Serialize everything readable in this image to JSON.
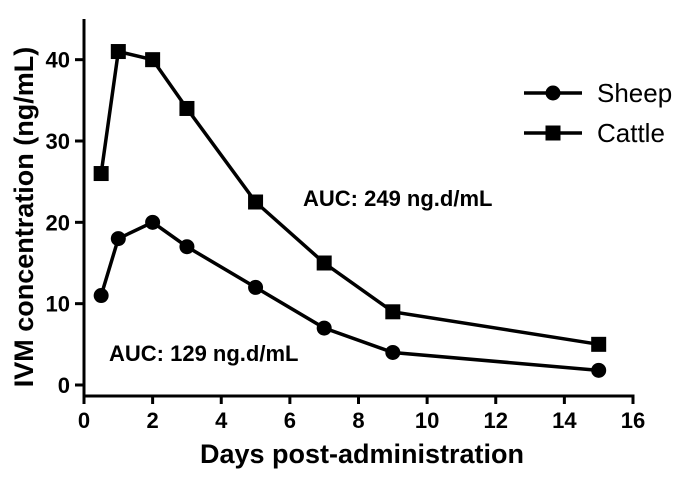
{
  "chart_data": {
    "type": "line",
    "xlabel": "Days post-administration",
    "ylabel": "IVM concentration  (ng/mL)",
    "xlim": [
      0,
      16
    ],
    "ylim": [
      0,
      45
    ],
    "x_ticks": [
      0,
      2,
      4,
      6,
      8,
      10,
      12,
      14,
      16
    ],
    "y_ticks": [
      0,
      10,
      20,
      30,
      40
    ],
    "grid": false,
    "legend_position": "top-right",
    "series": [
      {
        "name": "Sheep",
        "marker": "circle",
        "x": [
          0.5,
          1,
          2,
          3,
          5,
          7,
          9,
          15
        ],
        "y": [
          11,
          18,
          20,
          17,
          12,
          7,
          4,
          1.8
        ]
      },
      {
        "name": "Cattle",
        "marker": "square",
        "x": [
          0.5,
          1,
          2,
          3,
          5,
          7,
          9,
          15
        ],
        "y": [
          26,
          41,
          40,
          34,
          22.5,
          15,
          9,
          5
        ]
      }
    ],
    "annotations": [
      {
        "text": "AUC: 249 ng.d/mL",
        "series": "Cattle"
      },
      {
        "text": "AUC: 129 ng.d/mL",
        "series": "Sheep"
      }
    ]
  }
}
